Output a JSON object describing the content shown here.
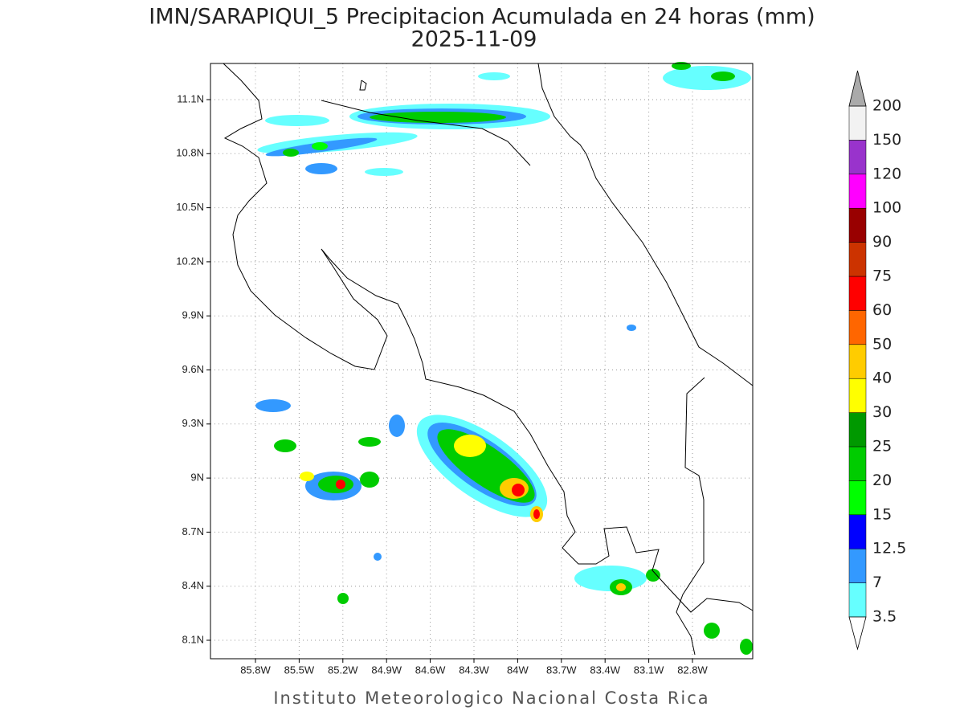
{
  "title": "IMN/SARAPIQUI_5 Precipitacion Acumulada en 24 horas (mm)",
  "date": "2025-11-09",
  "x_labels": [
    "85.8W",
    "85.5W",
    "85.2W",
    "84.9W",
    "84.6W",
    "84.3W",
    "84W",
    "83.7W",
    "83.4W",
    "83.1W",
    "82.8W"
  ],
  "y_labels": [
    "11.1N",
    "10.8N",
    "10.5N",
    "10.2N",
    "9.9N",
    "9.6N",
    "9.3N",
    "9N",
    "8.7N",
    "8.4N",
    "8.1N"
  ],
  "legend": {
    "levels": [
      3.5,
      7,
      12.5,
      15,
      20,
      25,
      30,
      40,
      50,
      60,
      75,
      90,
      100,
      120,
      150,
      200
    ],
    "colors": [
      "#66ffff",
      "#3399ff",
      "#0000ff",
      "#00ff00",
      "#00cc00",
      "#009900",
      "#ffff00",
      "#ffcc00",
      "#ff6600",
      "#ff0000",
      "#cc3300",
      "#990000",
      "#ff00ff",
      "#9933cc",
      "#f2f2f2"
    ],
    "under_color": "#ffffff",
    "over_color": "#aaaaaa"
  },
  "footer": "Instituto Meteorologico Nacional Costa Rica"
}
